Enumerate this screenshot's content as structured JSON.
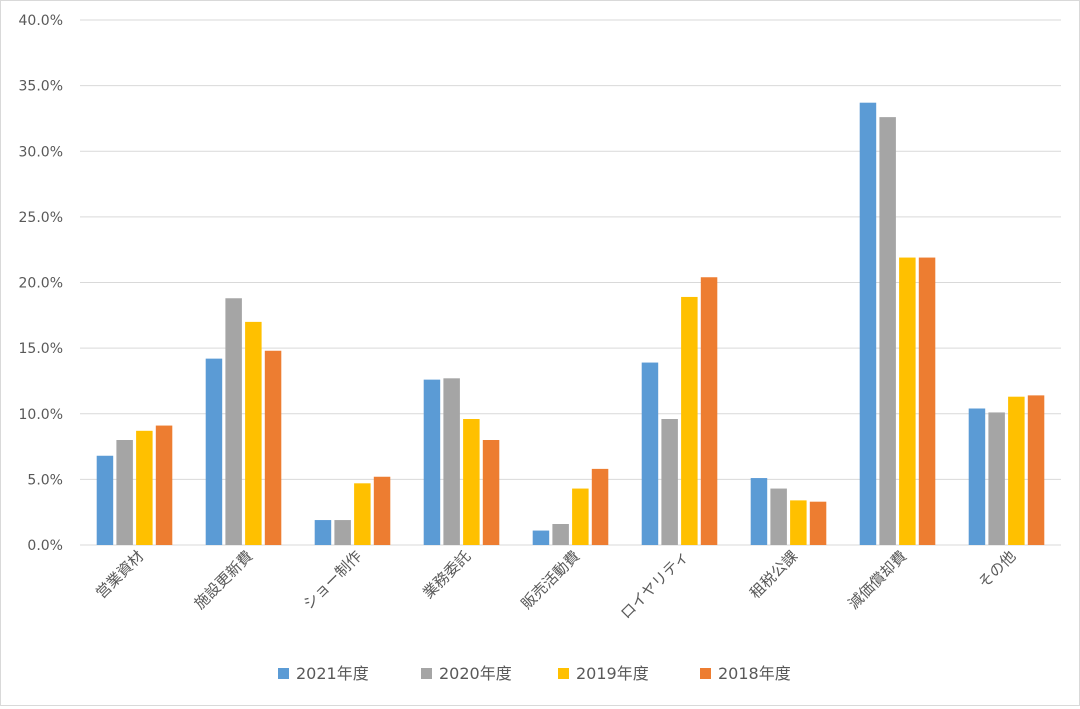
{
  "chart_data": {
    "type": "bar",
    "title": "",
    "xlabel": "",
    "ylabel": "",
    "ylim": [
      0,
      40
    ],
    "y_tick_values": [
      0,
      5,
      10,
      15,
      20,
      25,
      30,
      35,
      40
    ],
    "y_tick_labels": [
      "0.0%",
      "5.0%",
      "10.0%",
      "15.0%",
      "20.0%",
      "25.0%",
      "30.0%",
      "35.0%",
      "40.0%"
    ],
    "grid": "horizontal",
    "legend_position": "bottom",
    "categories": [
      "営業資材",
      "施設更新費",
      "ショー制作",
      "業務委託",
      "販売活動費",
      "ロイヤリティ",
      "租税公課",
      "減価償却費",
      "その他"
    ],
    "series": [
      {
        "name": "2021年度",
        "color": "#5b9bd5",
        "values": [
          6.8,
          14.2,
          1.9,
          12.6,
          1.1,
          13.9,
          5.1,
          33.7,
          10.4
        ]
      },
      {
        "name": "2020年度",
        "color": "#a5a5a5",
        "values": [
          8.0,
          18.8,
          1.9,
          12.7,
          1.6,
          9.6,
          4.3,
          32.6,
          10.1
        ]
      },
      {
        "name": "2019年度",
        "color": "#ffc000",
        "values": [
          8.7,
          17.0,
          4.7,
          9.6,
          4.3,
          18.9,
          3.4,
          21.9,
          11.3
        ]
      },
      {
        "name": "2018年度",
        "color": "#ed7d31",
        "values": [
          9.1,
          14.8,
          5.2,
          8.0,
          5.8,
          20.4,
          3.3,
          21.9,
          11.4
        ]
      }
    ]
  }
}
